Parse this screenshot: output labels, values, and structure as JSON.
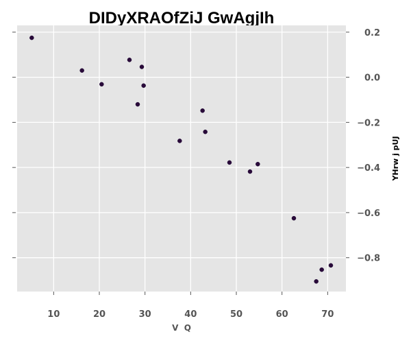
{
  "chart_data": {
    "type": "scatter",
    "title": "DIDyXRAOfZiJ GwAgjIh",
    "xlabel": "V  Q",
    "ylabel": "YHrw j pUJ",
    "xlim": [
      2,
      74
    ],
    "ylim": [
      -0.95,
      0.23
    ],
    "xticks": [
      10,
      20,
      30,
      40,
      50,
      60,
      70
    ],
    "yticks": [
      0.2,
      0.0,
      -0.2,
      -0.4,
      -0.6,
      -0.8
    ],
    "ytick_labels": [
      "0.2",
      "0.0",
      "−0.2",
      "−0.4",
      "−0.6",
      "−0.8"
    ],
    "yaxis_side": "right",
    "grid": true,
    "background_color": "#e5e5e5",
    "grid_color": "#ffffff",
    "marker_color": "#2a0a3a",
    "points": [
      {
        "x": 5.2,
        "y": 0.175
      },
      {
        "x": 16.2,
        "y": 0.03
      },
      {
        "x": 20.5,
        "y": -0.031
      },
      {
        "x": 26.6,
        "y": 0.077
      },
      {
        "x": 28.4,
        "y": -0.12
      },
      {
        "x": 29.3,
        "y": 0.046
      },
      {
        "x": 29.7,
        "y": -0.037
      },
      {
        "x": 37.6,
        "y": -0.282
      },
      {
        "x": 42.6,
        "y": -0.148
      },
      {
        "x": 43.2,
        "y": -0.242
      },
      {
        "x": 48.5,
        "y": -0.378
      },
      {
        "x": 53.0,
        "y": -0.418
      },
      {
        "x": 54.7,
        "y": -0.385
      },
      {
        "x": 62.6,
        "y": -0.625
      },
      {
        "x": 67.5,
        "y": -0.905
      },
      {
        "x": 68.7,
        "y": -0.853
      },
      {
        "x": 70.7,
        "y": -0.834
      }
    ]
  }
}
